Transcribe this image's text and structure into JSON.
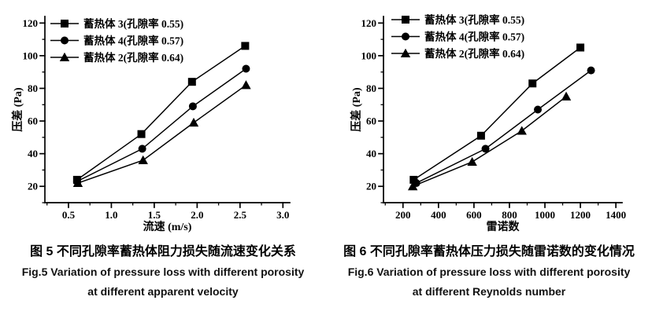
{
  "page": {
    "background": "#ffffff",
    "ink_color": "#000000"
  },
  "figures": [
    {
      "caption_cn": "图 5 不同孔隙率蓄热体阻力损失随流速变化关系",
      "caption_en_1": "Fig.5 Variation of pressure loss with different porosity",
      "caption_en_2": "at different apparent velocity"
    },
    {
      "caption_cn": "图 6 不同孔隙率蓄热体压力损失随雷诺数的变化情况",
      "caption_en_1": "Fig.6 Variation of pressure loss with different porosity",
      "caption_en_2": "at different Reynolds number"
    }
  ],
  "chart_data": [
    {
      "type": "line",
      "title": "",
      "xlabel": "流速 (m/s)",
      "ylabel": "压差 (Pa)",
      "xlim": [
        0.225,
        3.08
      ],
      "ylim": [
        10,
        124
      ],
      "xticks": [
        0.5,
        1.0,
        1.5,
        2.0,
        2.5,
        3.0
      ],
      "xtick_labels": [
        "0.5",
        "1.0",
        "1.5",
        "2.0",
        "2.5",
        "3.0"
      ],
      "x_minor_step": 0.25,
      "yticks": [
        20,
        40,
        60,
        80,
        100,
        120
      ],
      "ytick_labels": [
        "20",
        "40",
        "60",
        "80",
        "100",
        "120"
      ],
      "y_minor_step": 10,
      "grid": false,
      "legend_position": "top-left",
      "series": [
        {
          "name": "蓄热体 3(孔隙率 0.55)",
          "marker": "square",
          "x": [
            0.6,
            1.35,
            1.94,
            2.56
          ],
          "y": [
            24,
            52,
            84,
            106
          ]
        },
        {
          "name": "蓄热体 4(孔隙率 0.57)",
          "marker": "circle",
          "x": [
            0.6,
            1.36,
            1.95,
            2.57
          ],
          "y": [
            23,
            43,
            69,
            92
          ]
        },
        {
          "name": "蓄热体 2(孔隙率 0.64)",
          "marker": "triangle",
          "x": [
            0.61,
            1.37,
            1.96,
            2.57
          ],
          "y": [
            22,
            36,
            59,
            82
          ]
        }
      ]
    },
    {
      "type": "line",
      "title": "",
      "xlabel": "雷诺数",
      "ylabel": "压差 (Pa)",
      "xlim": [
        90,
        1435
      ],
      "ylim": [
        10,
        124
      ],
      "xticks": [
        200,
        400,
        600,
        800,
        1000,
        1200,
        1400
      ],
      "xtick_labels": [
        "200",
        "400",
        "600",
        "800",
        "1000",
        "1200",
        "1400"
      ],
      "x_minor_step": 100,
      "yticks": [
        20,
        40,
        60,
        80,
        100,
        120
      ],
      "ytick_labels": [
        "20",
        "40",
        "60",
        "80",
        "100",
        "120"
      ],
      "y_minor_step": 10,
      "grid": false,
      "legend_position": "top-left",
      "series": [
        {
          "name": "蓄热体 3(孔隙率 0.55)",
          "marker": "square",
          "x": [
            260,
            640,
            930,
            1200
          ],
          "y": [
            24,
            51,
            83,
            105
          ]
        },
        {
          "name": "蓄热体 4(孔隙率 0.57)",
          "marker": "circle",
          "x": [
            275,
            665,
            960,
            1260
          ],
          "y": [
            22,
            43,
            67,
            91
          ]
        },
        {
          "name": "蓄热体 2(孔隙率 0.64)",
          "marker": "triangle",
          "x": [
            255,
            590,
            870,
            1120
          ],
          "y": [
            20,
            35,
            54,
            75
          ]
        }
      ]
    }
  ]
}
